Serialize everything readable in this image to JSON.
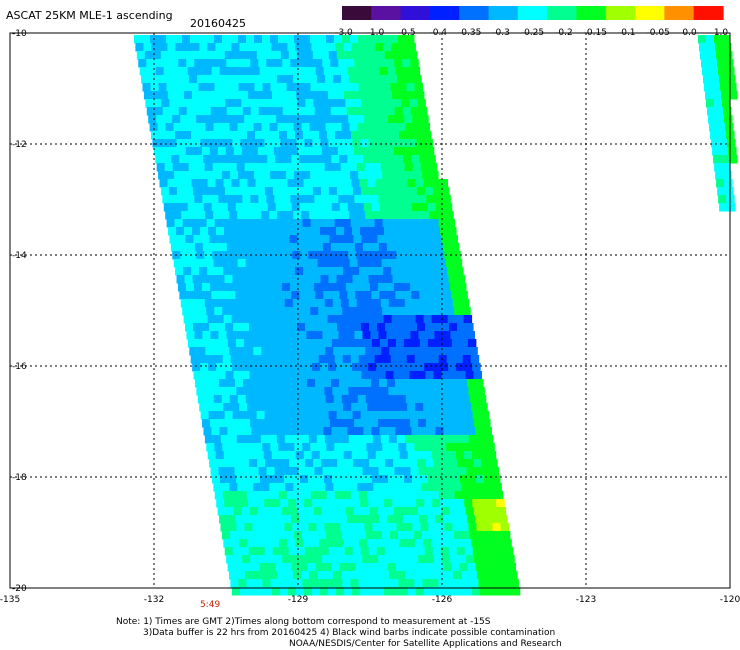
{
  "header": {
    "title": "ASCAT 25KM MLE-1 ascending",
    "date": "20160425"
  },
  "colorbar": {
    "labels": [
      "-3.0",
      "-1.0",
      "-0.5",
      "-0.4",
      "-0.35",
      "-0.3",
      "-0.25",
      "-0.2",
      "-0.15",
      "-0.1",
      "-0.05",
      "0.0",
      "1.0"
    ],
    "colors": [
      "#3a0a3a",
      "#5a10a0",
      "#3010d8",
      "#0020ff",
      "#0070ff",
      "#00b8ff",
      "#00ffff",
      "#00ff90",
      "#00ff20",
      "#a0ff00",
      "#ffff00",
      "#ff9000",
      "#ff1000"
    ]
  },
  "map": {
    "lon_range": [
      -135,
      -120
    ],
    "lat_range": [
      -20,
      -10
    ],
    "lon_ticks": [
      "-135",
      "-132",
      "-129",
      "-126",
      "-123",
      "-120"
    ],
    "lat_ticks": [
      "-10",
      "-12",
      "-14",
      "-16",
      "-18",
      "-20"
    ],
    "time_label": "5:49"
  },
  "notes": {
    "line1": "Note: 1) Times are GMT 2)Times along bottom correspond to measurement at -15S",
    "line2": "3)Data buffer is 22 hrs from 20160425 4) Black wind barbs indicate possible contamination",
    "line3": "NOAA/NESDIS/Center for Satellite Applications and Research"
  }
}
